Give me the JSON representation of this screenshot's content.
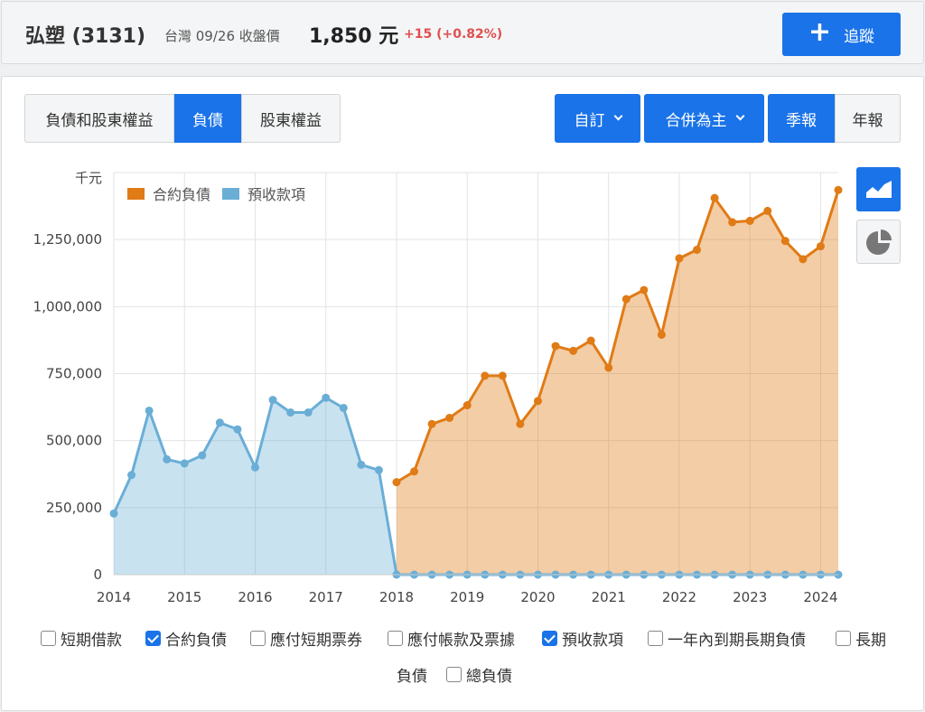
{
  "stock": {
    "name": "弘塑 (3131)",
    "meta": "台灣 09/26 收盤價",
    "price": "1,850 元",
    "change": "+15 (+0.82%)",
    "track_label": "追蹤",
    "track_icon": "plus-icon"
  },
  "tabs": [
    {
      "label": "負債和股東權益",
      "active": false
    },
    {
      "label": "負債",
      "active": true
    },
    {
      "label": "股東權益",
      "active": false
    }
  ],
  "controls": {
    "custom_label": "自訂",
    "consolidated_label": "合併為主",
    "quarterly_label": "季報",
    "annual_label": "年報"
  },
  "side_icons": {
    "line": "area-chart-icon",
    "pie": "pie-chart-icon"
  },
  "colors": {
    "accent": "#1a73e8",
    "contract": "#e07b16",
    "advance": "#6aaed6",
    "down": "#e05050"
  },
  "checkboxes": [
    {
      "label": "短期借款",
      "checked": false
    },
    {
      "label": "合約負債",
      "checked": true
    },
    {
      "label": "應付短期票券",
      "checked": false
    },
    {
      "label": "應付帳款及票據",
      "checked": false
    },
    {
      "label": "預收款項",
      "checked": true
    },
    {
      "label": "一年內到期長期負債",
      "checked": false
    },
    {
      "label": "長期",
      "checked": false
    },
    {
      "label": "負債",
      "checked": null
    },
    {
      "label": "總負債",
      "checked": false
    }
  ],
  "chart_data": {
    "type": "area",
    "unit_label": "千元",
    "x_ticks": [
      "2014",
      "2015",
      "2016",
      "2017",
      "2018",
      "2019",
      "2020",
      "2021",
      "2022",
      "2023",
      "2024"
    ],
    "x_range": [
      2014,
      2024.25
    ],
    "y_ticks": [
      "0",
      "250,000",
      "500,000",
      "750,000",
      "1,000,000",
      "1,250,000"
    ],
    "ylim": [
      0,
      1500000
    ],
    "grid": true,
    "legend_position": "top-left",
    "series": [
      {
        "name": "合約負債",
        "color": "#e07b16",
        "x": [
          2018,
          2018.25,
          2018.5,
          2018.75,
          2019,
          2019.25,
          2019.5,
          2019.75,
          2020,
          2020.25,
          2020.5,
          2020.75,
          2021,
          2021.25,
          2021.5,
          2021.75,
          2022,
          2022.25,
          2022.5,
          2022.75,
          2023,
          2023.25,
          2023.5,
          2023.75,
          2024,
          2024.25
        ],
        "y": [
          345000,
          385000,
          562000,
          585000,
          632000,
          742000,
          742000,
          562000,
          648000,
          853000,
          835000,
          873000,
          772000,
          1028000,
          1062000,
          895000,
          1180000,
          1212000,
          1405000,
          1315000,
          1320000,
          1357000,
          1245000,
          1177000,
          1225000,
          1435000
        ]
      },
      {
        "name": "預收款項",
        "color": "#6aaed6",
        "x": [
          2014,
          2014.25,
          2014.5,
          2014.75,
          2015,
          2015.25,
          2015.5,
          2015.75,
          2016,
          2016.25,
          2016.5,
          2016.75,
          2017,
          2017.25,
          2017.5,
          2017.75,
          2018,
          2018.25,
          2018.5,
          2018.75,
          2019,
          2019.25,
          2019.5,
          2019.75,
          2020,
          2020.25,
          2020.5,
          2020.75,
          2021,
          2021.25,
          2021.5,
          2021.75,
          2022,
          2022.25,
          2022.5,
          2022.75,
          2023,
          2023.25,
          2023.5,
          2023.75,
          2024,
          2024.25
        ],
        "y": [
          228000,
          372000,
          612000,
          430000,
          415000,
          445000,
          567000,
          542000,
          400000,
          652000,
          605000,
          605000,
          660000,
          622000,
          410000,
          390000,
          0,
          0,
          0,
          0,
          0,
          0,
          0,
          0,
          0,
          0,
          0,
          0,
          0,
          0,
          0,
          0,
          0,
          0,
          0,
          0,
          0,
          0,
          0,
          0,
          0,
          0
        ]
      }
    ]
  }
}
